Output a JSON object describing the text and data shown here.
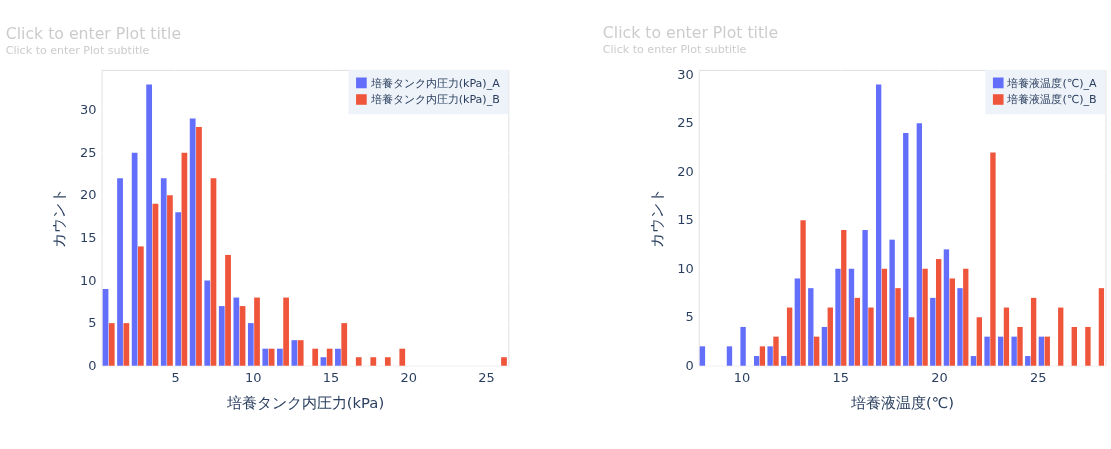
{
  "chart_data": [
    {
      "type": "histogram",
      "title": "Click to enter Plot title",
      "subtitle": "Click to enter Plot subtitle",
      "xlabel": "培養タンク内圧力(kPa)",
      "ylabel": "カウント",
      "bins": [
        0.28,
        1.21,
        2.15,
        3.08,
        4.02,
        4.95,
        5.88,
        6.82,
        7.75,
        8.69,
        9.62,
        10.55,
        11.49,
        12.42,
        13.36,
        14.29,
        15.22,
        16.16,
        17.09,
        18.03,
        18.96,
        19.89,
        20.83,
        21.76,
        22.7,
        23.63,
        24.56,
        25.5,
        26.43
      ],
      "series": [
        {
          "name": "培養タンク内圧力(kPa)_A",
          "color": "#636efa",
          "values": [
            9,
            22,
            25,
            33,
            22,
            18,
            29,
            10,
            7,
            8,
            5,
            2,
            2,
            3,
            0,
            1,
            2,
            0,
            0,
            0,
            0,
            0,
            0,
            0,
            0,
            0,
            0,
            0
          ]
        },
        {
          "name": "培養タンク内圧力(kPa)_B",
          "color": "#ef553b",
          "values": [
            5,
            5,
            14,
            19,
            20,
            25,
            28,
            22,
            13,
            7,
            8,
            2,
            8,
            3,
            2,
            2,
            5,
            1,
            1,
            1,
            2,
            0,
            0,
            0,
            0,
            0,
            0,
            1
          ]
        }
      ],
      "xlim": [
        0.28,
        26.43
      ],
      "xticks": [
        5,
        10,
        15,
        20,
        25
      ],
      "ylim": [
        0,
        34.7
      ],
      "yticks": [
        0,
        5,
        10,
        15,
        20,
        25,
        30
      ],
      "grid": true,
      "legend": "top right"
    },
    {
      "type": "histogram",
      "title": "Click to enter Plot title",
      "subtitle": "Click to enter Plot subtitle",
      "xlabel": "培養液温度(℃)",
      "ylabel": "カウント",
      "bins": [
        7.83,
        8.52,
        9.2,
        9.89,
        10.58,
        11.26,
        11.95,
        12.64,
        13.32,
        14.01,
        14.7,
        15.38,
        16.07,
        16.76,
        17.44,
        18.13,
        18.82,
        19.5,
        20.19,
        20.88,
        21.56,
        22.25,
        22.94,
        23.62,
        24.31,
        25.0,
        25.69,
        26.37,
        27.06,
        27.75,
        28.43
      ],
      "series": [
        {
          "name": "培養液温度(℃)_A",
          "color": "#636efa",
          "values": [
            2,
            0,
            2,
            4,
            1,
            2,
            1,
            9,
            8,
            4,
            10,
            10,
            14,
            29,
            13,
            24,
            25,
            7,
            12,
            8,
            1,
            3,
            3,
            3,
            1,
            3,
            0,
            0,
            0,
            0
          ]
        },
        {
          "name": "培養液温度(℃)_B",
          "color": "#ef553b",
          "values": [
            0,
            0,
            0,
            0,
            2,
            3,
            6,
            15,
            3,
            6,
            14,
            7,
            6,
            10,
            8,
            5,
            10,
            11,
            9,
            10,
            5,
            22,
            6,
            4,
            7,
            3,
            6,
            4,
            4,
            8
          ]
        }
      ],
      "xlim": [
        7.83,
        28.43
      ],
      "xticks": [
        10,
        15,
        20,
        25
      ],
      "ylim": [
        0,
        30.5
      ],
      "yticks": [
        0,
        5,
        10,
        15,
        20,
        25,
        30
      ],
      "grid": true,
      "legend": "top right"
    }
  ]
}
